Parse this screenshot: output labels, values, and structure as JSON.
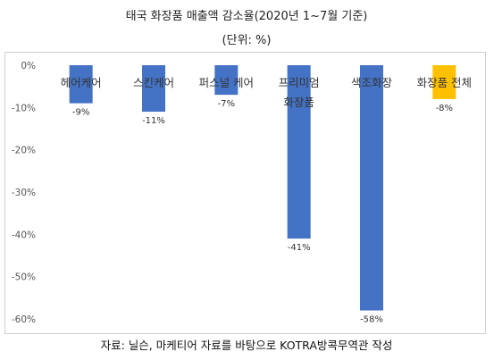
{
  "chart_data": {
    "type": "bar",
    "title": "태국 화장품 매출액 감소율(2020년 1~7월 기준)",
    "subtitle": "(단위: %)",
    "categories": [
      "헤어케어",
      "스킨케어",
      "퍼스널 케어",
      "프리미엄 화장품",
      "색조화장",
      "화장품 전체"
    ],
    "category_lines": [
      [
        "헤어케어"
      ],
      [
        "스킨케어"
      ],
      [
        "퍼스널 케어"
      ],
      [
        "프리미엄",
        "화장품"
      ],
      [
        "색조화장"
      ],
      [
        "화장품 전체"
      ]
    ],
    "values": [
      -9,
      -11,
      -7,
      -41,
      -58,
      -8
    ],
    "data_labels": [
      "-9%",
      "-11%",
      "-7%",
      "-41%",
      "-58%",
      "-8%"
    ],
    "ylim": [
      -60,
      0
    ],
    "y_ticks": [
      0,
      -10,
      -20,
      -30,
      -40,
      -50,
      -60
    ],
    "y_tick_labels": [
      "0%",
      "-10%",
      "-20%",
      "-30%",
      "-40%",
      "-50%",
      "-60%"
    ],
    "grid": false,
    "xlabel": "",
    "ylabel": "",
    "colors": [
      "#4472C4",
      "#4472C4",
      "#4472C4",
      "#4472C4",
      "#4472C4",
      "#FFC000"
    ],
    "source": "자료: 닐슨, 마케티어 자료를 바탕으로 KOTRA방콕무역관 작성"
  }
}
